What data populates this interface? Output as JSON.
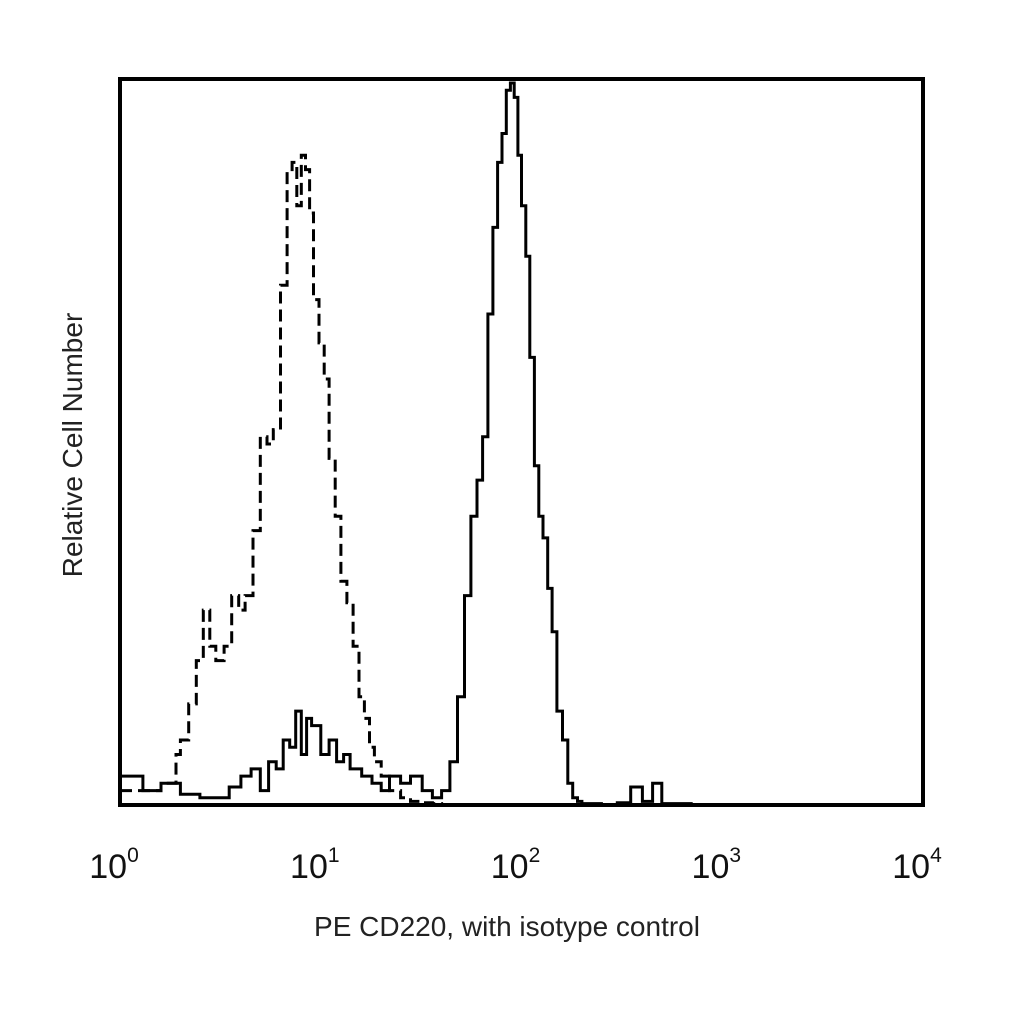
{
  "chart_data": {
    "type": "line",
    "title": "",
    "xlabel": "PE CD220, with isotype control",
    "ylabel": "Relative Cell Number",
    "x_scale": "log",
    "xlim": [
      1,
      10000
    ],
    "ylim": [
      0,
      100
    ],
    "grid": false,
    "x_ticks": [
      {
        "value": 1,
        "base": "10",
        "exp": "0"
      },
      {
        "value": 10,
        "base": "10",
        "exp": "1"
      },
      {
        "value": 100,
        "base": "10",
        "exp": "2"
      },
      {
        "value": 1000,
        "base": "10",
        "exp": "3"
      },
      {
        "value": 10000,
        "base": "10",
        "exp": "4"
      }
    ],
    "series": [
      {
        "style": "dashed",
        "color": "#000000",
        "x": [
          1.0,
          1.3,
          1.6,
          1.9,
          2.0,
          2.2,
          2.4,
          2.6,
          2.8,
          3.0,
          3.3,
          3.6,
          3.9,
          4.2,
          4.6,
          5.0,
          5.4,
          5.8,
          6.3,
          6.8,
          7.2,
          7.6,
          8.0,
          8.4,
          8.8,
          9.2,
          9.8,
          10.4,
          11.0,
          11.8,
          12.6,
          13.5,
          14.5,
          15.5,
          16.5,
          17.5,
          18.5,
          20.0,
          22.0,
          25.0,
          28.0,
          32.0,
          36.0,
          40.0
        ],
        "y": [
          2.0,
          2.0,
          3.0,
          7.0,
          9.0,
          14.0,
          20.0,
          27.0,
          22.0,
          20.0,
          22.0,
          29.0,
          27.0,
          29.0,
          38.0,
          51.0,
          50.0,
          52.0,
          72.0,
          88.0,
          89.0,
          83.0,
          90.0,
          88.0,
          82.0,
          70.0,
          64.0,
          59.0,
          48.0,
          40.0,
          31.0,
          28.0,
          22.0,
          15.0,
          12.0,
          8.0,
          6.0,
          4.0,
          2.0,
          1.0,
          0.5,
          0.3,
          0.2,
          0.0
        ]
      },
      {
        "style": "solid",
        "color": "#000000",
        "x": [
          1.0,
          1.3,
          1.6,
          2.0,
          2.5,
          3.0,
          3.5,
          4.0,
          4.5,
          5.0,
          5.5,
          6.0,
          6.5,
          7.0,
          7.5,
          8.0,
          8.5,
          9.0,
          10.0,
          11.0,
          12.0,
          13.0,
          14.0,
          16.0,
          18.0,
          20.0,
          22.0,
          25.0,
          28.0,
          32.0,
          36.0,
          40.0,
          44.0,
          48.0,
          52.0,
          56.0,
          60.0,
          64.0,
          68.0,
          72.0,
          76.0,
          80.0,
          84.0,
          88.0,
          92.0,
          96.0,
          100.0,
          105.0,
          110.0,
          116.0,
          122.0,
          128.0,
          135.0,
          142.0,
          150.0,
          160.0,
          170.0,
          180.0,
          190.0,
          200.0,
          250.0,
          300.0,
          350.0,
          400.0,
          450.0,
          500.0,
          700.0,
          1000.0,
          2000.0,
          5000.0,
          9000.0,
          10000.0
        ],
        "y": [
          4.0,
          2.0,
          3.0,
          1.5,
          1.0,
          1.0,
          2.5,
          4.0,
          5.0,
          2.0,
          6.0,
          5.0,
          9.0,
          8.0,
          13.0,
          7.0,
          12.0,
          11.0,
          7.0,
          9.0,
          6.0,
          7.0,
          5.0,
          4.0,
          3.0,
          2.0,
          4.0,
          3.0,
          4.0,
          2.0,
          1.0,
          2.0,
          6.0,
          15.0,
          29.0,
          40.0,
          45.0,
          51.0,
          68.0,
          80.0,
          89.0,
          93.0,
          99.0,
          100.0,
          98.0,
          90.0,
          83.0,
          76.0,
          62.0,
          47.0,
          40.0,
          37.0,
          30.0,
          24.0,
          13.0,
          9.0,
          3.0,
          1.0,
          0.5,
          0.2,
          0.0,
          0.3,
          2.5,
          0.5,
          3.0,
          0.2,
          0.0,
          0.0,
          0.0,
          0.0,
          0.0,
          8.0
        ]
      }
    ]
  }
}
